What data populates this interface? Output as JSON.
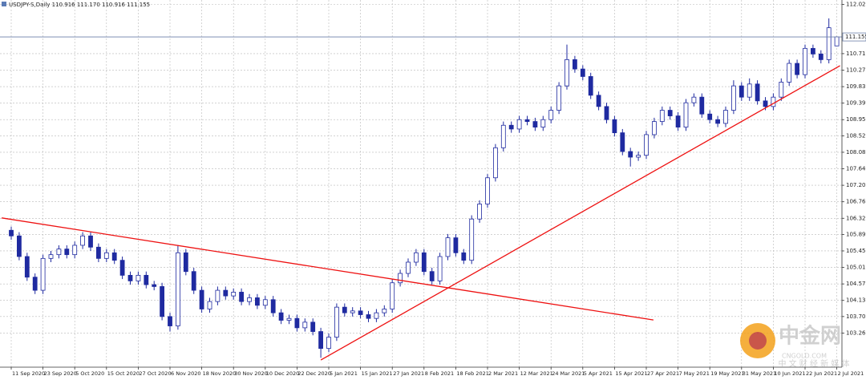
{
  "chart_data": {
    "type": "candlestick",
    "title": "USDJPY-S,Daily  110.916 111.170 110.916 111.155",
    "up_color": "#ffffff",
    "down_color": "#1f2aa0",
    "outline_color": "#1f2aa0",
    "grid": true,
    "current_price": 111.155,
    "current_price_color": "#6b7fa8",
    "ylim": [
      102.35,
      112.14
    ],
    "yticks": [
      {
        "value": 112.02,
        "label": "112.020"
      },
      {
        "value": 110.71,
        "label": "110.710"
      },
      {
        "value": 110.27,
        "label": "110.270"
      },
      {
        "value": 109.83,
        "label": "109.830"
      },
      {
        "value": 109.39,
        "label": "109.390"
      },
      {
        "value": 108.95,
        "label": "108.950"
      },
      {
        "value": 108.52,
        "label": "108.520"
      },
      {
        "value": 108.08,
        "label": "108.080"
      },
      {
        "value": 107.64,
        "label": "107.640"
      },
      {
        "value": 107.2,
        "label": "107.200"
      },
      {
        "value": 106.76,
        "label": "106.760"
      },
      {
        "value": 106.32,
        "label": "106.320"
      },
      {
        "value": 105.89,
        "label": "105.890"
      },
      {
        "value": 105.45,
        "label": "105.450"
      },
      {
        "value": 105.01,
        "label": "105.010"
      },
      {
        "value": 104.57,
        "label": "104.570"
      },
      {
        "value": 104.13,
        "label": "104.130"
      },
      {
        "value": 103.7,
        "label": "103.700"
      },
      {
        "value": 103.26,
        "label": "103.260"
      }
    ],
    "categories": [
      "11 Sep 2020",
      null,
      null,
      null,
      "23 Sep 2020",
      null,
      null,
      null,
      "5 Oct 2020",
      null,
      null,
      null,
      "15 Oct 2020",
      null,
      null,
      null,
      "27 Oct 2020",
      null,
      null,
      null,
      "6 Nov 2020",
      null,
      null,
      null,
      "18 Nov 2020",
      null,
      null,
      null,
      "30 Nov 2020",
      null,
      null,
      null,
      "10 Dec 2020",
      null,
      null,
      null,
      "22 Dec 2020",
      null,
      null,
      null,
      "5 Jan 2021",
      null,
      null,
      null,
      "15 Jan 2021",
      null,
      null,
      null,
      "27 Jan 2021",
      null,
      null,
      null,
      "8 Feb 2021",
      null,
      null,
      null,
      "18 Feb 2021",
      null,
      null,
      null,
      "2 Mar 2021",
      null,
      null,
      null,
      "12 Mar 2021",
      null,
      null,
      null,
      "24 Mar 2021",
      null,
      null,
      null,
      "5 Apr 2021",
      null,
      null,
      null,
      "15 Apr 2021",
      null,
      null,
      null,
      "27 Apr 2021",
      null,
      null,
      null,
      "7 May 2021",
      null,
      null,
      null,
      "19 May 2021",
      null,
      null,
      null,
      "31 May 2021",
      null,
      null,
      null,
      "10 Jun 2021",
      null,
      null,
      null,
      "22 Jun 2021",
      null,
      null,
      null,
      "2 Jul 2021"
    ],
    "open": [
      106.0,
      105.85,
      105.3,
      104.75,
      104.4,
      105.25,
      105.35,
      105.5,
      105.35,
      105.6,
      105.85,
      105.55,
      105.25,
      105.4,
      105.2,
      104.8,
      104.65,
      104.8,
      104.55,
      104.5,
      103.7,
      103.45,
      105.4,
      104.9,
      104.4,
      103.9,
      104.1,
      104.4,
      104.25,
      104.35,
      104.1,
      104.2,
      104.0,
      104.15,
      103.8,
      103.6,
      103.65,
      103.4,
      103.55,
      103.3,
      102.85,
      103.15,
      103.95,
      103.8,
      103.85,
      103.75,
      103.65,
      103.8,
      103.9,
      104.6,
      104.85,
      105.15,
      105.4,
      104.9,
      104.65,
      105.3,
      105.8,
      105.4,
      105.2,
      106.3,
      106.7,
      107.4,
      108.2,
      108.8,
      108.7,
      108.95,
      108.9,
      108.75,
      108.95,
      109.2,
      109.85,
      110.55,
      110.3,
      110.1,
      109.6,
      109.3,
      108.95,
      108.6,
      108.1,
      107.95,
      108.0,
      108.55,
      108.9,
      109.2,
      109.05,
      108.75,
      109.4,
      109.55,
      109.1,
      108.95,
      108.85,
      109.2,
      109.85,
      109.55,
      109.9,
      109.45,
      109.3,
      109.55,
      109.95,
      110.45,
      110.15,
      110.85,
      110.7,
      110.55,
      110.916
    ],
    "high": [
      106.1,
      105.95,
      105.4,
      104.85,
      105.35,
      105.45,
      105.6,
      105.6,
      105.7,
      105.95,
      105.95,
      105.65,
      105.5,
      105.5,
      105.3,
      104.9,
      104.9,
      104.9,
      104.65,
      104.6,
      103.8,
      105.6,
      105.5,
      105.0,
      104.5,
      104.2,
      104.5,
      104.5,
      104.45,
      104.45,
      104.3,
      104.3,
      104.25,
      104.25,
      103.9,
      103.75,
      103.75,
      103.65,
      103.65,
      103.4,
      103.25,
      104.05,
      104.05,
      103.95,
      103.95,
      103.85,
      103.9,
      104.0,
      104.7,
      104.95,
      105.25,
      105.5,
      105.5,
      105.0,
      105.4,
      105.9,
      105.9,
      105.5,
      106.4,
      106.8,
      107.5,
      108.3,
      108.9,
      108.9,
      109.05,
      109.05,
      109.0,
      109.05,
      109.3,
      109.95,
      110.95,
      110.65,
      110.4,
      110.2,
      109.7,
      109.4,
      109.05,
      108.7,
      108.2,
      108.1,
      108.65,
      109.0,
      109.3,
      109.3,
      109.15,
      109.5,
      109.65,
      109.65,
      109.2,
      109.05,
      109.3,
      110.0,
      109.95,
      110.05,
      110.0,
      109.55,
      109.65,
      110.05,
      110.55,
      110.55,
      110.95,
      110.95,
      110.8,
      111.65,
      111.17
    ],
    "low": [
      105.75,
      105.2,
      104.65,
      104.3,
      104.3,
      105.15,
      105.25,
      105.25,
      105.25,
      105.5,
      105.45,
      105.15,
      105.15,
      105.1,
      104.7,
      104.55,
      104.55,
      104.45,
      104.4,
      103.6,
      103.3,
      103.35,
      104.8,
      104.3,
      103.8,
      103.8,
      104.0,
      104.15,
      104.15,
      104.0,
      104.0,
      103.9,
      103.9,
      103.7,
      103.5,
      103.5,
      103.3,
      103.3,
      103.2,
      102.6,
      102.75,
      103.05,
      103.7,
      103.7,
      103.65,
      103.55,
      103.55,
      103.7,
      103.8,
      104.5,
      104.75,
      105.05,
      104.8,
      104.55,
      104.55,
      105.2,
      105.3,
      105.1,
      105.1,
      106.2,
      106.6,
      107.3,
      108.1,
      108.6,
      108.6,
      108.8,
      108.65,
      108.65,
      108.85,
      109.1,
      109.75,
      110.2,
      110.0,
      109.5,
      109.2,
      108.85,
      108.5,
      108.0,
      107.7,
      107.85,
      107.9,
      108.45,
      108.8,
      108.95,
      108.65,
      108.65,
      109.3,
      109.0,
      108.85,
      108.75,
      108.75,
      109.1,
      109.45,
      109.45,
      109.35,
      109.2,
      109.2,
      109.45,
      109.85,
      110.05,
      110.05,
      110.6,
      110.45,
      110.45,
      110.916
    ],
    "close": [
      105.85,
      105.3,
      104.75,
      104.4,
      105.25,
      105.35,
      105.5,
      105.35,
      105.6,
      105.85,
      105.55,
      105.25,
      105.4,
      105.2,
      104.8,
      104.65,
      104.8,
      104.55,
      104.5,
      103.7,
      103.45,
      105.4,
      104.9,
      104.4,
      103.9,
      104.1,
      104.4,
      104.25,
      104.35,
      104.1,
      104.2,
      104.0,
      104.15,
      103.8,
      103.6,
      103.65,
      103.4,
      103.55,
      103.3,
      102.85,
      103.15,
      103.95,
      103.8,
      103.85,
      103.75,
      103.65,
      103.8,
      103.9,
      104.6,
      104.85,
      105.15,
      105.4,
      104.9,
      104.65,
      105.3,
      105.8,
      105.4,
      105.2,
      106.3,
      106.7,
      107.4,
      108.2,
      108.8,
      108.7,
      108.95,
      108.9,
      108.75,
      108.95,
      109.2,
      109.85,
      110.55,
      110.3,
      110.1,
      109.6,
      109.3,
      108.95,
      108.6,
      108.1,
      107.95,
      108.0,
      108.55,
      108.9,
      109.2,
      109.05,
      108.75,
      109.4,
      109.55,
      109.1,
      108.95,
      108.85,
      109.2,
      109.85,
      109.55,
      109.9,
      109.45,
      109.3,
      109.55,
      109.95,
      110.45,
      110.15,
      110.85,
      110.7,
      110.55,
      111.4,
      111.155
    ],
    "trendlines": [
      {
        "color": "#ee1111",
        "x": [
          -1.2,
          80.9
        ],
        "y": [
          106.33,
          103.61
        ]
      },
      {
        "color": "#ee1111",
        "x": [
          39.0,
          104.4
        ],
        "y": [
          102.54,
          110.39
        ]
      }
    ]
  },
  "watermark": {
    "logo": "中金网",
    "site": "CNGOLD.COM",
    "tagline": "中 文 财 经 新 媒 体"
  }
}
